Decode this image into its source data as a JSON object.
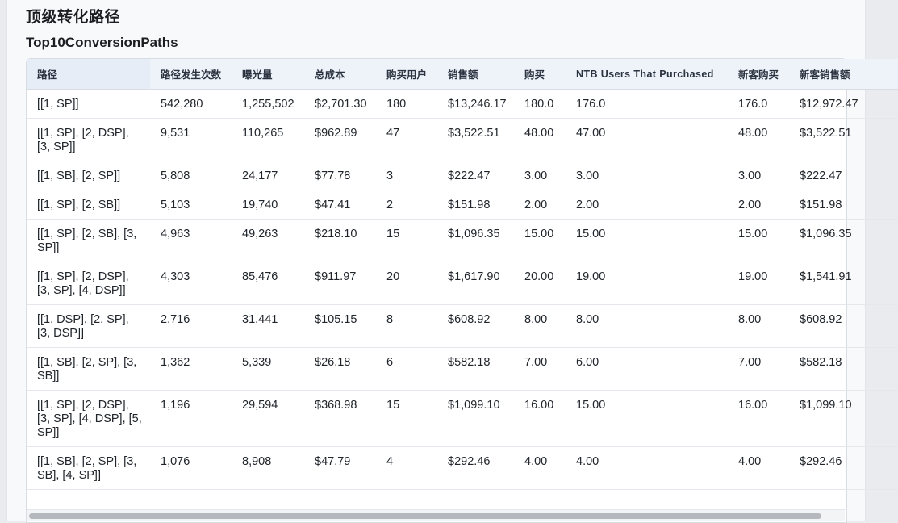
{
  "page": {
    "title": "顶级转化路径",
    "section_title": "Top10ConversionPaths"
  },
  "table": {
    "columns": [
      "路径",
      "路径发生次数",
      "曝光量",
      "总成本",
      "购买用户",
      "销售额",
      "购买",
      "NTB Users That Purchased",
      "新客购买",
      "新客销售额"
    ],
    "rows": [
      [
        "[[1, SP]]",
        "542,280",
        "1,255,502",
        "$2,701.30",
        "180",
        "$13,246.17",
        "180.0",
        "176.0",
        "176.0",
        "$12,972.47"
      ],
      [
        "[[1, SP], [2, DSP], [3, SP]]",
        "9,531",
        "110,265",
        "$962.89",
        "47",
        "$3,522.51",
        "48.00",
        "47.00",
        "48.00",
        "$3,522.51"
      ],
      [
        "[[1, SB], [2, SP]]",
        "5,808",
        "24,177",
        "$77.78",
        "3",
        "$222.47",
        "3.00",
        "3.00",
        "3.00",
        "$222.47"
      ],
      [
        "[[1, SP], [2, SB]]",
        "5,103",
        "19,740",
        "$47.41",
        "2",
        "$151.98",
        "2.00",
        "2.00",
        "2.00",
        "$151.98"
      ],
      [
        "[[1, SP], [2, SB], [3, SP]]",
        "4,963",
        "49,263",
        "$218.10",
        "15",
        "$1,096.35",
        "15.00",
        "15.00",
        "15.00",
        "$1,096.35"
      ],
      [
        "[[1, SP], [2, DSP], [3, SP], [4, DSP]]",
        "4,303",
        "85,476",
        "$911.97",
        "20",
        "$1,617.90",
        "20.00",
        "19.00",
        "19.00",
        "$1,541.91"
      ],
      [
        "[[1, DSP], [2, SP], [3, DSP]]",
        "2,716",
        "31,441",
        "$105.15",
        "8",
        "$608.92",
        "8.00",
        "8.00",
        "8.00",
        "$608.92"
      ],
      [
        "[[1, SB], [2, SP], [3, SB]]",
        "1,362",
        "5,339",
        "$26.18",
        "6",
        "$582.18",
        "7.00",
        "6.00",
        "7.00",
        "$582.18"
      ],
      [
        "[[1, SP], [2, DSP], [3, SP], [4, DSP], [5, SP]]",
        "1,196",
        "29,594",
        "$368.98",
        "15",
        "$1,099.10",
        "16.00",
        "15.00",
        "16.00",
        "$1,099.10"
      ],
      [
        "[[1, SB], [2, SP], [3, SB], [4, SP]]",
        "1,076",
        "8,908",
        "$47.79",
        "4",
        "$292.46",
        "4.00",
        "4.00",
        "4.00",
        "$292.46"
      ]
    ]
  }
}
